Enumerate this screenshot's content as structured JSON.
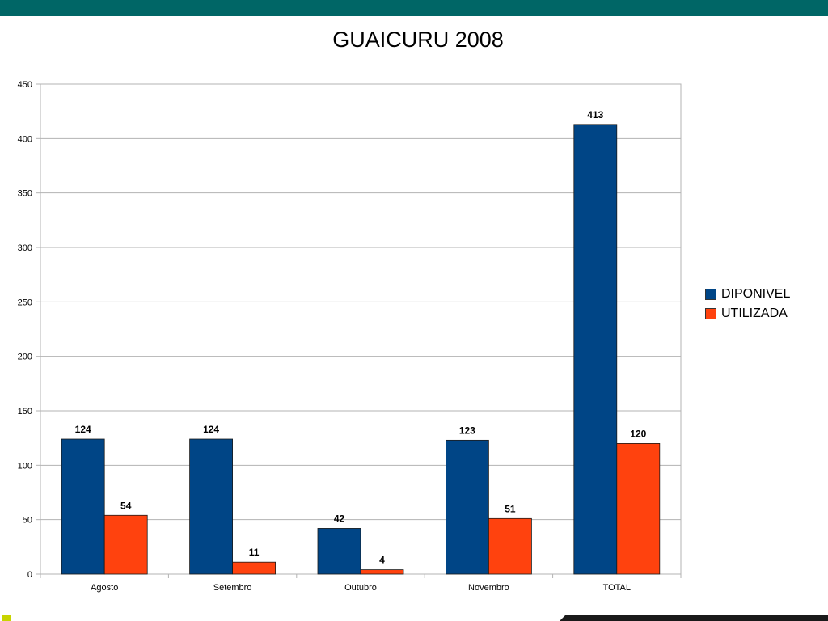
{
  "colors": {
    "top_bar": "#006666",
    "series_diponivel": "#004586",
    "series_utilizada": "#FF420E",
    "grid": "#b3b3b3",
    "corner_mark": "#c8d400",
    "bottom_deco": "#1a1a1a"
  },
  "title": "GUAICURU 2008",
  "legend": [
    {
      "label": "DIPONIVEL"
    },
    {
      "label": "UTILIZADA"
    }
  ],
  "chart_data": {
    "type": "bar",
    "title": "GUAICURU 2008",
    "categories": [
      "Agosto",
      "Setembro",
      "Outubro",
      "Novembro",
      "TOTAL"
    ],
    "series": [
      {
        "name": "DIPONIVEL",
        "values": [
          124,
          124,
          42,
          123,
          413
        ]
      },
      {
        "name": "UTILIZADA",
        "values": [
          54,
          11,
          4,
          51,
          120
        ]
      }
    ],
    "xlabel": "",
    "ylabel": "",
    "ylim": [
      0,
      450
    ],
    "yticks": [
      0,
      50,
      100,
      150,
      200,
      250,
      300,
      350,
      400,
      450
    ],
    "grid": true,
    "legend_position": "right",
    "data_labels": true
  }
}
